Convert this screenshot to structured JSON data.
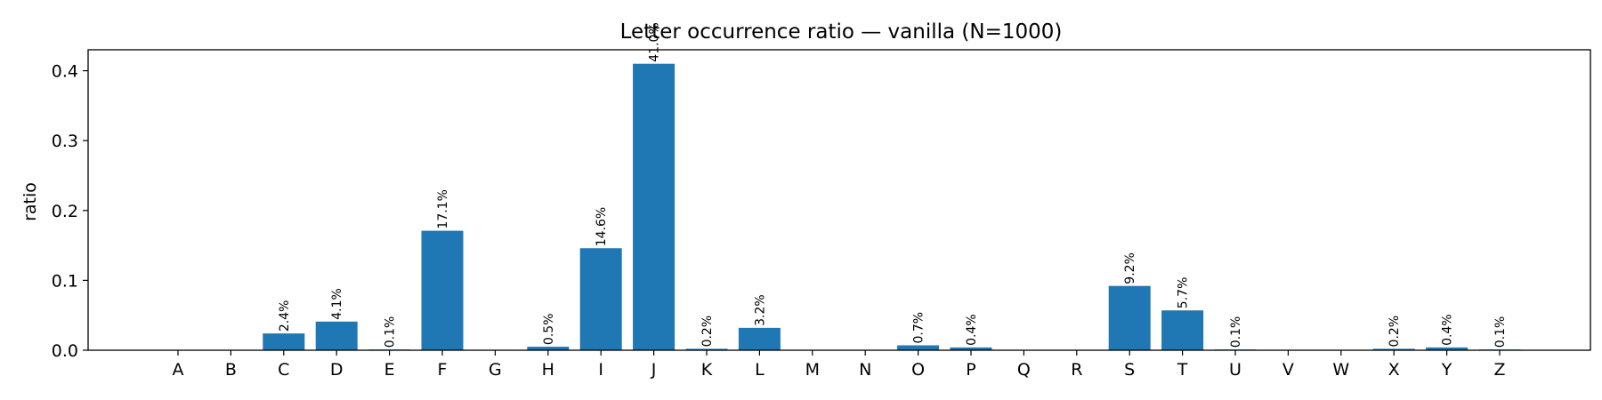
{
  "chart_data": {
    "type": "bar",
    "title": "Letter occurrence ratio — vanilla (N=1000)",
    "xlabel": "",
    "ylabel": "ratio",
    "categories": [
      "A",
      "B",
      "C",
      "D",
      "E",
      "F",
      "G",
      "H",
      "I",
      "J",
      "K",
      "L",
      "M",
      "N",
      "O",
      "P",
      "Q",
      "R",
      "S",
      "T",
      "U",
      "V",
      "W",
      "X",
      "Y",
      "Z"
    ],
    "values": [
      0,
      0,
      0.024,
      0.041,
      0.001,
      0.171,
      0,
      0.005,
      0.146,
      0.41,
      0.002,
      0.032,
      0,
      0,
      0.007,
      0.004,
      0,
      0,
      0.092,
      0.057,
      0.001,
      0,
      0,
      0.002,
      0.004,
      0.001
    ],
    "data_labels": [
      "",
      "",
      "2.4%",
      "4.1%",
      "0.1%",
      "17.1%",
      "",
      "0.5%",
      "14.6%",
      "41.0%",
      "0.2%",
      "3.2%",
      "",
      "",
      "0.7%",
      "0.4%",
      "",
      "",
      "9.2%",
      "5.7%",
      "0.1%",
      "",
      "",
      "0.2%",
      "0.4%",
      "0.1%"
    ],
    "ylim": [
      0,
      0.43
    ],
    "yticks": [
      0.0,
      0.1,
      0.2,
      0.3,
      0.4
    ],
    "ytick_labels": [
      "0.0",
      "0.1",
      "0.2",
      "0.3",
      "0.4"
    ],
    "grid": false,
    "bar_color": "#1f77b4"
  }
}
